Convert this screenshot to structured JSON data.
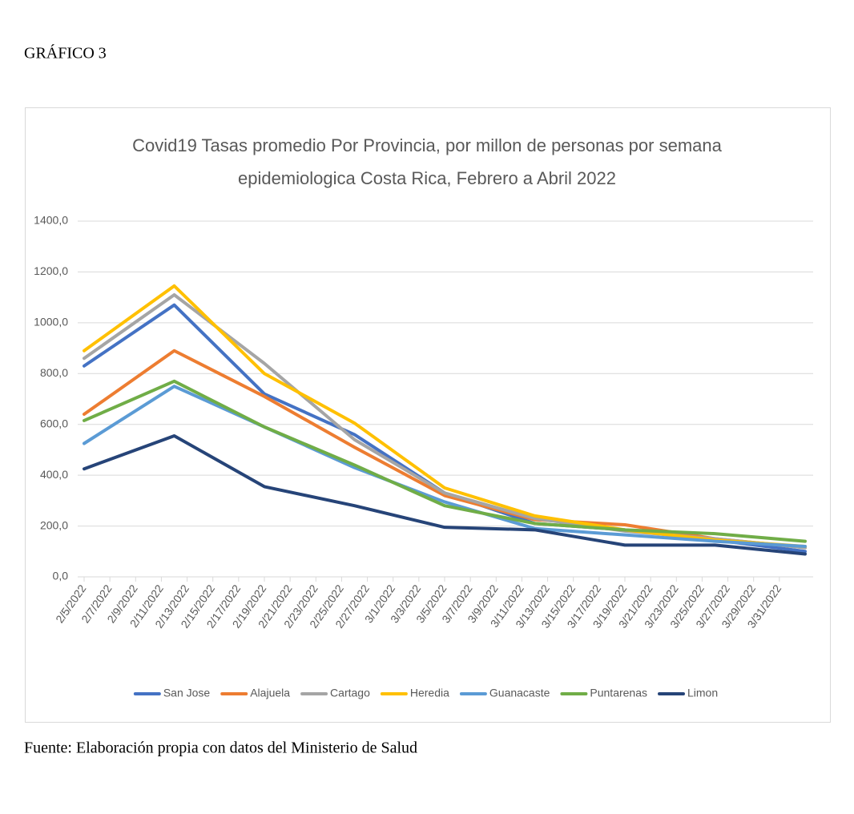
{
  "heading": "GRÁFICO 3",
  "source": "Fuente: Elaboración propia con datos del Ministerio de Salud",
  "chart_data": {
    "type": "line",
    "title": [
      "Covid19 Tasas promedio Por Provincia, por millon de personas por semana",
      "epidemiologica Costa Rica, Febrero a Abril 2022"
    ],
    "x": [
      "2/5/2022",
      "2/12/2022",
      "2/19/2022",
      "2/26/2022",
      "3/5/2022",
      "3/12/2022",
      "3/19/2022",
      "3/26/2022",
      "4/2/2022"
    ],
    "xlim": [
      "2/5/2022",
      "4/2/2022"
    ],
    "xticks": [
      "2/5/2022",
      "2/7/2022",
      "2/9/2022",
      "2/11/2022",
      "2/13/2022",
      "2/15/2022",
      "2/17/2022",
      "2/19/2022",
      "2/21/2022",
      "2/23/2022",
      "2/25/2022",
      "2/27/2022",
      "3/1/2022",
      "3/3/2022",
      "3/5/2022",
      "3/7/2022",
      "3/9/2022",
      "3/11/2022",
      "3/13/2022",
      "3/15/2022",
      "3/17/2022",
      "3/19/2022",
      "3/21/2022",
      "3/23/2022",
      "3/25/2022",
      "3/27/2022",
      "3/29/2022",
      "3/31/2022"
    ],
    "ylim": [
      0,
      1400
    ],
    "yticks": [
      {
        "value": 0,
        "label": "0,0"
      },
      {
        "value": 200,
        "label": "200,0"
      },
      {
        "value": 400,
        "label": "400,0"
      },
      {
        "value": 600,
        "label": "600,0"
      },
      {
        "value": 800,
        "label": "800,0"
      },
      {
        "value": 1000,
        "label": "1000,0"
      },
      {
        "value": 1200,
        "label": "1200,0"
      },
      {
        "value": 1400,
        "label": "1400,0"
      }
    ],
    "grid": true,
    "legend": "bottom",
    "series": [
      {
        "name": "San Jose",
        "color": "#4472c4",
        "values": [
          830,
          1070,
          720,
          560,
          330,
          210,
          185,
          145,
          100
        ]
      },
      {
        "name": "Alajuela",
        "color": "#ed7d31",
        "values": [
          640,
          890,
          710,
          510,
          320,
          225,
          205,
          150,
          115
        ]
      },
      {
        "name": "Cartago",
        "color": "#a5a5a5",
        "values": [
          860,
          1110,
          840,
          540,
          330,
          230,
          180,
          150,
          115
        ]
      },
      {
        "name": "Heredia",
        "color": "#ffc000",
        "values": [
          890,
          1145,
          800,
          605,
          350,
          240,
          185,
          145,
          120
        ]
      },
      {
        "name": "Guanacaste",
        "color": "#5b9bd5",
        "values": [
          525,
          750,
          590,
          430,
          295,
          190,
          165,
          140,
          120
        ]
      },
      {
        "name": "Puntarenas",
        "color": "#70ad47",
        "values": [
          615,
          770,
          590,
          440,
          280,
          210,
          185,
          170,
          140
        ]
      },
      {
        "name": "Limon",
        "color": "#264478",
        "values": [
          425,
          555,
          355,
          280,
          195,
          185,
          125,
          125,
          90
        ]
      }
    ]
  }
}
